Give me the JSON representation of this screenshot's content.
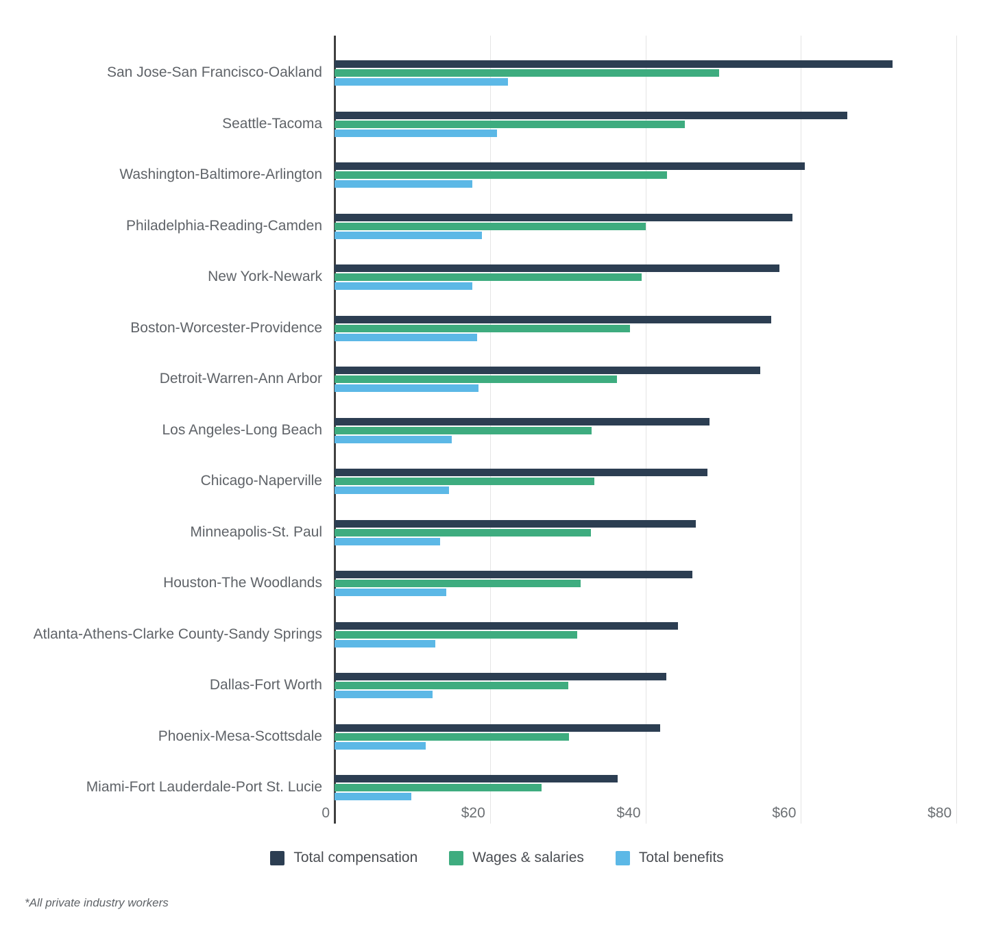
{
  "chart_data": {
    "type": "bar",
    "orientation": "horizontal",
    "categories": [
      "San Jose-San Francisco-Oakland",
      "Seattle-Tacoma",
      "Washington-Baltimore-Arlington",
      "Philadelphia-Reading-Camden",
      "New York-Newark",
      "Boston-Worcester-Providence",
      "Detroit-Warren-Ann Arbor",
      "Los Angeles-Long Beach",
      "Chicago-Naperville",
      "Minneapolis-St. Paul",
      "Houston-The Woodlands",
      "Atlanta-Athens-Clarke County-Sandy Springs",
      "Dallas-Fort Worth",
      "Phoenix-Mesa-Scottsdale",
      "Miami-Fort Lauderdale-Port St. Lucie"
    ],
    "series": [
      {
        "name": "Total compensation",
        "color": "#2c3e52",
        "values": [
          71.8,
          66.0,
          60.5,
          58.9,
          57.2,
          56.2,
          54.8,
          48.2,
          48.0,
          46.5,
          46.0,
          44.2,
          42.7,
          41.9,
          36.4
        ]
      },
      {
        "name": "Wages & salaries",
        "color": "#3eac7f",
        "values": [
          49.5,
          45.1,
          42.8,
          40.0,
          39.5,
          38.0,
          36.3,
          33.1,
          33.4,
          33.0,
          31.7,
          31.2,
          30.1,
          30.2,
          26.6
        ]
      },
      {
        "name": "Total benefits",
        "color": "#5cb8e6",
        "values": [
          22.3,
          20.9,
          17.7,
          19.0,
          17.7,
          18.3,
          18.5,
          15.1,
          14.7,
          13.6,
          14.4,
          13.0,
          12.6,
          11.7,
          9.9
        ]
      }
    ],
    "xlim": [
      0,
      80
    ],
    "x_tick_values": [
      0,
      20,
      40,
      60,
      80
    ],
    "x_tick_labels": [
      "0",
      "$20",
      "$40",
      "$60",
      "$80"
    ],
    "grid": true,
    "legend_position": "bottom"
  },
  "footnote": "*All private industry workers"
}
